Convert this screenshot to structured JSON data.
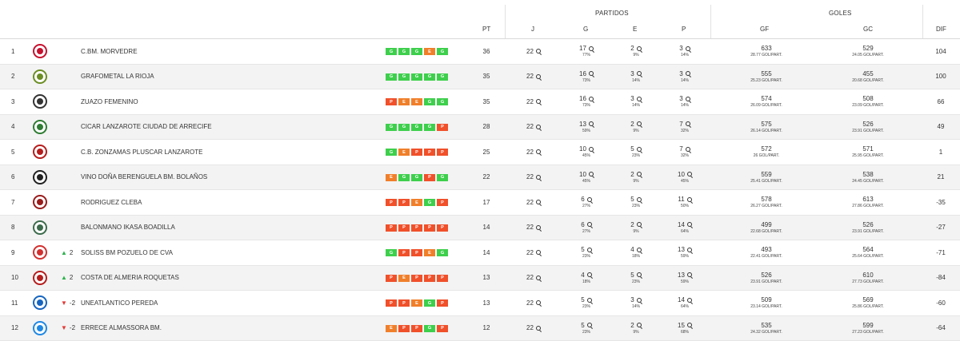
{
  "header": {
    "group_partidos": "PARTIDOS",
    "group_goles": "GOLES",
    "col_pt": "PT",
    "col_j": "J",
    "col_g": "G",
    "col_e": "E",
    "col_p": "P",
    "col_gf": "GF",
    "col_gc": "GC",
    "col_dif": "DIF"
  },
  "colors": {
    "win": "#3ecf4c",
    "draw": "#f07f2a",
    "loss": "#f0502a",
    "trend_up": "#2bb24c",
    "trend_down": "#e53935"
  },
  "rows": [
    {
      "pos": "1",
      "logo": "morvedre-crest",
      "trend": "",
      "trend_dir": "",
      "team": "C.BM. MORVEDRE",
      "form": [
        "G",
        "G",
        "G",
        "E",
        "G"
      ],
      "pt": "36",
      "j": "22",
      "g": "17",
      "g_pct": "77%",
      "e": "2",
      "e_pct": "9%",
      "p": "3",
      "p_pct": "14%",
      "gf": "633",
      "gf_avg": "28.77 GOL/PART.",
      "gc": "529",
      "gc_avg": "24.05 GOL/PART.",
      "dif": "104"
    },
    {
      "pos": "2",
      "logo": "grafometal-crest",
      "trend": "",
      "trend_dir": "",
      "team": "GRAFOMETAL LA RIOJA",
      "form": [
        "G",
        "G",
        "G",
        "G",
        "G"
      ],
      "pt": "35",
      "j": "22",
      "g": "16",
      "g_pct": "73%",
      "e": "3",
      "e_pct": "14%",
      "p": "3",
      "p_pct": "14%",
      "gf": "555",
      "gf_avg": "25.23 GOL/PART.",
      "gc": "455",
      "gc_avg": "20.68 GOL/PART.",
      "dif": "100"
    },
    {
      "pos": "3",
      "logo": "zuazo-crest",
      "trend": "",
      "trend_dir": "",
      "team": "ZUAZO FEMENINO",
      "form": [
        "P",
        "E",
        "E",
        "G",
        "G"
      ],
      "pt": "35",
      "j": "22",
      "g": "16",
      "g_pct": "73%",
      "e": "3",
      "e_pct": "14%",
      "p": "3",
      "p_pct": "14%",
      "gf": "574",
      "gf_avg": "26.09 GOL/PART.",
      "gc": "508",
      "gc_avg": "23.09 GOL/PART.",
      "dif": "66"
    },
    {
      "pos": "4",
      "logo": "arrecife-crest",
      "trend": "",
      "trend_dir": "",
      "team": "CICAR LANZAROTE CIUDAD DE ARRECIFE",
      "form": [
        "G",
        "G",
        "G",
        "G",
        "P"
      ],
      "pt": "28",
      "j": "22",
      "g": "13",
      "g_pct": "59%",
      "e": "2",
      "e_pct": "9%",
      "p": "7",
      "p_pct": "32%",
      "gf": "575",
      "gf_avg": "26.14 GOL/PART.",
      "gc": "526",
      "gc_avg": "23.91 GOL/PART.",
      "dif": "49"
    },
    {
      "pos": "5",
      "logo": "zonzamas-crest",
      "trend": "",
      "trend_dir": "",
      "team": "C.B. ZONZAMAS PLUSCAR LANZAROTE",
      "form": [
        "G",
        "E",
        "P",
        "P",
        "P"
      ],
      "pt": "25",
      "j": "22",
      "g": "10",
      "g_pct": "45%",
      "e": "5",
      "e_pct": "23%",
      "p": "7",
      "p_pct": "32%",
      "gf": "572",
      "gf_avg": "26 GOL/PART.",
      "gc": "571",
      "gc_avg": "25.95 GOL/PART.",
      "dif": "1"
    },
    {
      "pos": "6",
      "logo": "bolanos-crest",
      "trend": "",
      "trend_dir": "",
      "team": "VINO DOÑA BERENGUELA BM. BOLAÑOS",
      "form": [
        "E",
        "G",
        "G",
        "P",
        "G"
      ],
      "pt": "22",
      "j": "22",
      "g": "10",
      "g_pct": "45%",
      "e": "2",
      "e_pct": "9%",
      "p": "10",
      "p_pct": "45%",
      "gf": "559",
      "gf_avg": "25.41 GOL/PART.",
      "gc": "538",
      "gc_avg": "24.45 GOL/PART.",
      "dif": "21"
    },
    {
      "pos": "7",
      "logo": "cleba-crest",
      "trend": "",
      "trend_dir": "",
      "team": "RODRIGUEZ CLEBA",
      "form": [
        "P",
        "P",
        "E",
        "G",
        "P"
      ],
      "pt": "17",
      "j": "22",
      "g": "6",
      "g_pct": "27%",
      "e": "5",
      "e_pct": "23%",
      "p": "11",
      "p_pct": "50%",
      "gf": "578",
      "gf_avg": "26.27 GOL/PART.",
      "gc": "613",
      "gc_avg": "27.86 GOL/PART.",
      "dif": "-35"
    },
    {
      "pos": "8",
      "logo": "ikasa-crest",
      "trend": "",
      "trend_dir": "",
      "team": "BALONMANO IKASA BOADILLA",
      "form": [
        "P",
        "P",
        "P",
        "P",
        "P"
      ],
      "pt": "14",
      "j": "22",
      "g": "6",
      "g_pct": "27%",
      "e": "2",
      "e_pct": "9%",
      "p": "14",
      "p_pct": "64%",
      "gf": "499",
      "gf_avg": "22.68 GOL/PART.",
      "gc": "526",
      "gc_avg": "23.91 GOL/PART.",
      "dif": "-27"
    },
    {
      "pos": "9",
      "logo": "pozuelo-crest",
      "trend": "2",
      "trend_dir": "up",
      "team": "SOLISS BM POZUELO DE CVA",
      "form": [
        "G",
        "P",
        "P",
        "E",
        "G"
      ],
      "pt": "14",
      "j": "22",
      "g": "5",
      "g_pct": "23%",
      "e": "4",
      "e_pct": "18%",
      "p": "13",
      "p_pct": "59%",
      "gf": "493",
      "gf_avg": "22.41 GOL/PART.",
      "gc": "564",
      "gc_avg": "25.64 GOL/PART.",
      "dif": "-71"
    },
    {
      "pos": "10",
      "logo": "roquetas-crest",
      "trend": "2",
      "trend_dir": "up",
      "team": "COSTA DE ALMERIA ROQUETAS",
      "form": [
        "P",
        "E",
        "P",
        "P",
        "P"
      ],
      "pt": "13",
      "j": "22",
      "g": "4",
      "g_pct": "18%",
      "e": "5",
      "e_pct": "23%",
      "p": "13",
      "p_pct": "59%",
      "gf": "526",
      "gf_avg": "23.91 GOL/PART.",
      "gc": "610",
      "gc_avg": "27.73 GOL/PART.",
      "dif": "-84"
    },
    {
      "pos": "11",
      "logo": "pereda-crest",
      "trend": "-2",
      "trend_dir": "down",
      "team": "UNEATLANTICO PEREDA",
      "form": [
        "P",
        "P",
        "E",
        "G",
        "P"
      ],
      "pt": "13",
      "j": "22",
      "g": "5",
      "g_pct": "23%",
      "e": "3",
      "e_pct": "14%",
      "p": "14",
      "p_pct": "64%",
      "gf": "509",
      "gf_avg": "23.14 GOL/PART.",
      "gc": "569",
      "gc_avg": "25.86 GOL/PART.",
      "dif": "-60"
    },
    {
      "pos": "12",
      "logo": "almassora-crest",
      "trend": "-2",
      "trend_dir": "down",
      "team": "ERRECE ALMASSORA BM.",
      "form": [
        "E",
        "P",
        "P",
        "G",
        "P"
      ],
      "pt": "12",
      "j": "22",
      "g": "5",
      "g_pct": "23%",
      "e": "2",
      "e_pct": "9%",
      "p": "15",
      "p_pct": "68%",
      "gf": "535",
      "gf_avg": "24.32 GOL/PART.",
      "gc": "599",
      "gc_avg": "27.23 GOL/PART.",
      "dif": "-64"
    }
  ]
}
